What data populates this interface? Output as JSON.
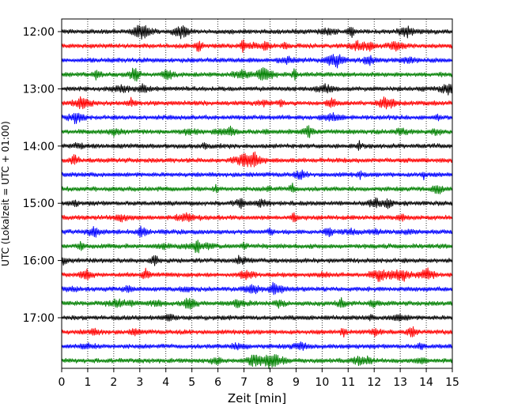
{
  "chart_data": {
    "type": "line",
    "title": "",
    "xlabel": "Zeit  [min]",
    "ylabel": "UTC (Lokalzeit = UTC + 01:00)",
    "xlim": [
      0,
      15
    ],
    "x_ticks": [
      0,
      1,
      2,
      3,
      4,
      5,
      6,
      7,
      8,
      9,
      10,
      11,
      12,
      13,
      14,
      15
    ],
    "y_tick_labels": [
      "12:00",
      "13:00",
      "14:00",
      "15:00",
      "16:00",
      "17:00"
    ],
    "trace_interval_minutes": 15,
    "trace_start_times": [
      "12:00",
      "12:15",
      "12:30",
      "12:45",
      "13:00",
      "13:15",
      "13:30",
      "13:45",
      "14:00",
      "14:15",
      "14:30",
      "14:45",
      "15:00",
      "15:15",
      "15:30",
      "15:45",
      "16:00",
      "16:15",
      "16:30",
      "16:45",
      "17:00",
      "17:15",
      "17:30",
      "17:45"
    ],
    "trace_colors": [
      "#000000",
      "#ff0000",
      "#0000ff",
      "#008000"
    ],
    "grid_x": true,
    "grid_style": "dotted",
    "legend": "none"
  }
}
